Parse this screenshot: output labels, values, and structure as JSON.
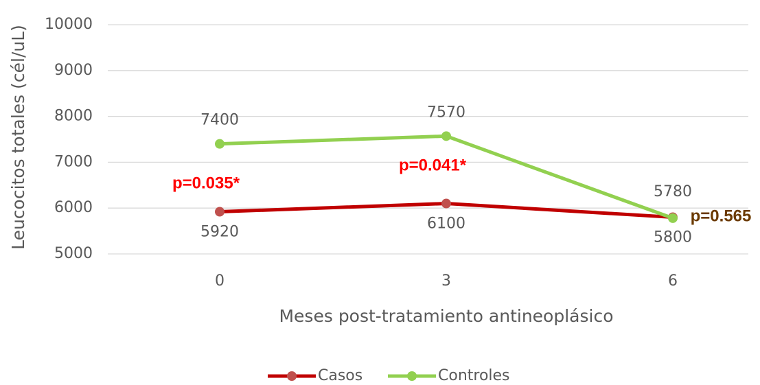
{
  "chart_data": {
    "type": "line",
    "x_label": "Meses post-tratamiento antineoplásico",
    "y_label": "Leucocitos totales (cél/uL)",
    "categories": [
      "0",
      "3",
      "6"
    ],
    "series": [
      {
        "name": "Casos",
        "color": "#c00000",
        "marker_color": "#c0504d",
        "values": [
          5920,
          6100,
          5800
        ]
      },
      {
        "name": "Controles",
        "color": "#92d050",
        "marker_color": "#92d050",
        "values": [
          7400,
          7570,
          5780
        ]
      }
    ],
    "ylim": [
      5000,
      10000
    ],
    "yticks": [
      5000,
      6000,
      7000,
      8000,
      9000,
      10000
    ],
    "grid": true,
    "annotations": [
      {
        "text": "p=0.035*",
        "color": "#ff0000"
      },
      {
        "text": "p=0.041*",
        "color": "#ff0000"
      },
      {
        "text": "p=0.565",
        "color": "#6b3a00"
      }
    ],
    "legend": "bottom"
  }
}
